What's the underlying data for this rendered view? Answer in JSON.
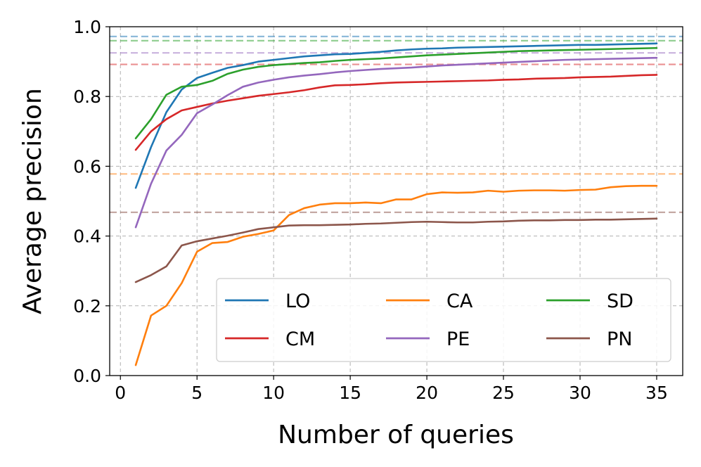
{
  "chart_data": {
    "type": "line",
    "title": "",
    "xlabel": "Number of queries",
    "ylabel": "Average precision",
    "xlim": [
      -0.7,
      36.7
    ],
    "ylim": [
      0.0,
      1.0
    ],
    "xticks": [
      0,
      5,
      10,
      15,
      20,
      25,
      30,
      35
    ],
    "xtick_labels": [
      "0",
      "5",
      "10",
      "15",
      "20",
      "25",
      "30",
      "35"
    ],
    "yticks": [
      0.0,
      0.2,
      0.4,
      0.6,
      0.8,
      1.0
    ],
    "ytick_labels": [
      "0.0",
      "0.2",
      "0.4",
      "0.6",
      "0.8",
      "1.0"
    ],
    "grid": true,
    "legend_position": "lower-right",
    "legend_columns": 3,
    "x": [
      1,
      2,
      3,
      4,
      5,
      6,
      7,
      8,
      9,
      10,
      11,
      12,
      13,
      14,
      15,
      16,
      17,
      18,
      19,
      20,
      21,
      22,
      23,
      24,
      25,
      26,
      27,
      28,
      29,
      30,
      31,
      32,
      33,
      34,
      35
    ],
    "series": [
      {
        "name": "LO",
        "color": "#1f77b4",
        "reference": 0.972,
        "values": [
          0.538,
          0.655,
          0.755,
          0.82,
          0.853,
          0.868,
          0.882,
          0.89,
          0.9,
          0.905,
          0.91,
          0.915,
          0.918,
          0.921,
          0.922,
          0.925,
          0.928,
          0.932,
          0.935,
          0.937,
          0.938,
          0.94,
          0.941,
          0.942,
          0.943,
          0.944,
          0.945,
          0.946,
          0.947,
          0.948,
          0.948,
          0.949,
          0.95,
          0.951,
          0.952
        ]
      },
      {
        "name": "CA",
        "color": "#ff7f0e",
        "reference": 0.578,
        "values": [
          0.03,
          0.172,
          0.2,
          0.265,
          0.355,
          0.38,
          0.383,
          0.398,
          0.406,
          0.416,
          0.46,
          0.48,
          0.49,
          0.494,
          0.494,
          0.496,
          0.494,
          0.505,
          0.505,
          0.52,
          0.525,
          0.524,
          0.525,
          0.53,
          0.527,
          0.53,
          0.531,
          0.531,
          0.53,
          0.532,
          0.533,
          0.54,
          0.543,
          0.544,
          0.544
        ]
      },
      {
        "name": "SD",
        "color": "#2ca02c",
        "reference": 0.96,
        "values": [
          0.68,
          0.735,
          0.805,
          0.828,
          0.833,
          0.845,
          0.865,
          0.877,
          0.885,
          0.89,
          0.893,
          0.896,
          0.898,
          0.902,
          0.905,
          0.907,
          0.909,
          0.912,
          0.915,
          0.918,
          0.92,
          0.922,
          0.924,
          0.926,
          0.928,
          0.93,
          0.931,
          0.932,
          0.933,
          0.934,
          0.935,
          0.936,
          0.937,
          0.938,
          0.939
        ]
      },
      {
        "name": "CM",
        "color": "#d62728",
        "reference": 0.892,
        "values": [
          0.647,
          0.7,
          0.735,
          0.76,
          0.77,
          0.78,
          0.788,
          0.795,
          0.802,
          0.807,
          0.812,
          0.818,
          0.826,
          0.832,
          0.833,
          0.835,
          0.838,
          0.84,
          0.841,
          0.842,
          0.843,
          0.844,
          0.845,
          0.846,
          0.848,
          0.849,
          0.851,
          0.852,
          0.853,
          0.855,
          0.856,
          0.857,
          0.859,
          0.861,
          0.862
        ]
      },
      {
        "name": "PE",
        "color": "#9467bd",
        "reference": 0.925,
        "values": [
          0.425,
          0.55,
          0.645,
          0.69,
          0.752,
          0.777,
          0.804,
          0.828,
          0.84,
          0.848,
          0.855,
          0.86,
          0.864,
          0.869,
          0.873,
          0.876,
          0.879,
          0.881,
          0.883,
          0.886,
          0.889,
          0.891,
          0.893,
          0.895,
          0.897,
          0.899,
          0.901,
          0.903,
          0.905,
          0.906,
          0.907,
          0.908,
          0.909,
          0.91,
          0.911
        ]
      },
      {
        "name": "PN",
        "color": "#8c564b",
        "reference": 0.468,
        "values": [
          0.268,
          0.288,
          0.313,
          0.373,
          0.385,
          0.393,
          0.401,
          0.41,
          0.42,
          0.425,
          0.43,
          0.431,
          0.431,
          0.432,
          0.433,
          0.435,
          0.436,
          0.438,
          0.44,
          0.441,
          0.44,
          0.439,
          0.439,
          0.441,
          0.442,
          0.444,
          0.445,
          0.445,
          0.446,
          0.446,
          0.447,
          0.447,
          0.448,
          0.449,
          0.45
        ]
      }
    ]
  }
}
